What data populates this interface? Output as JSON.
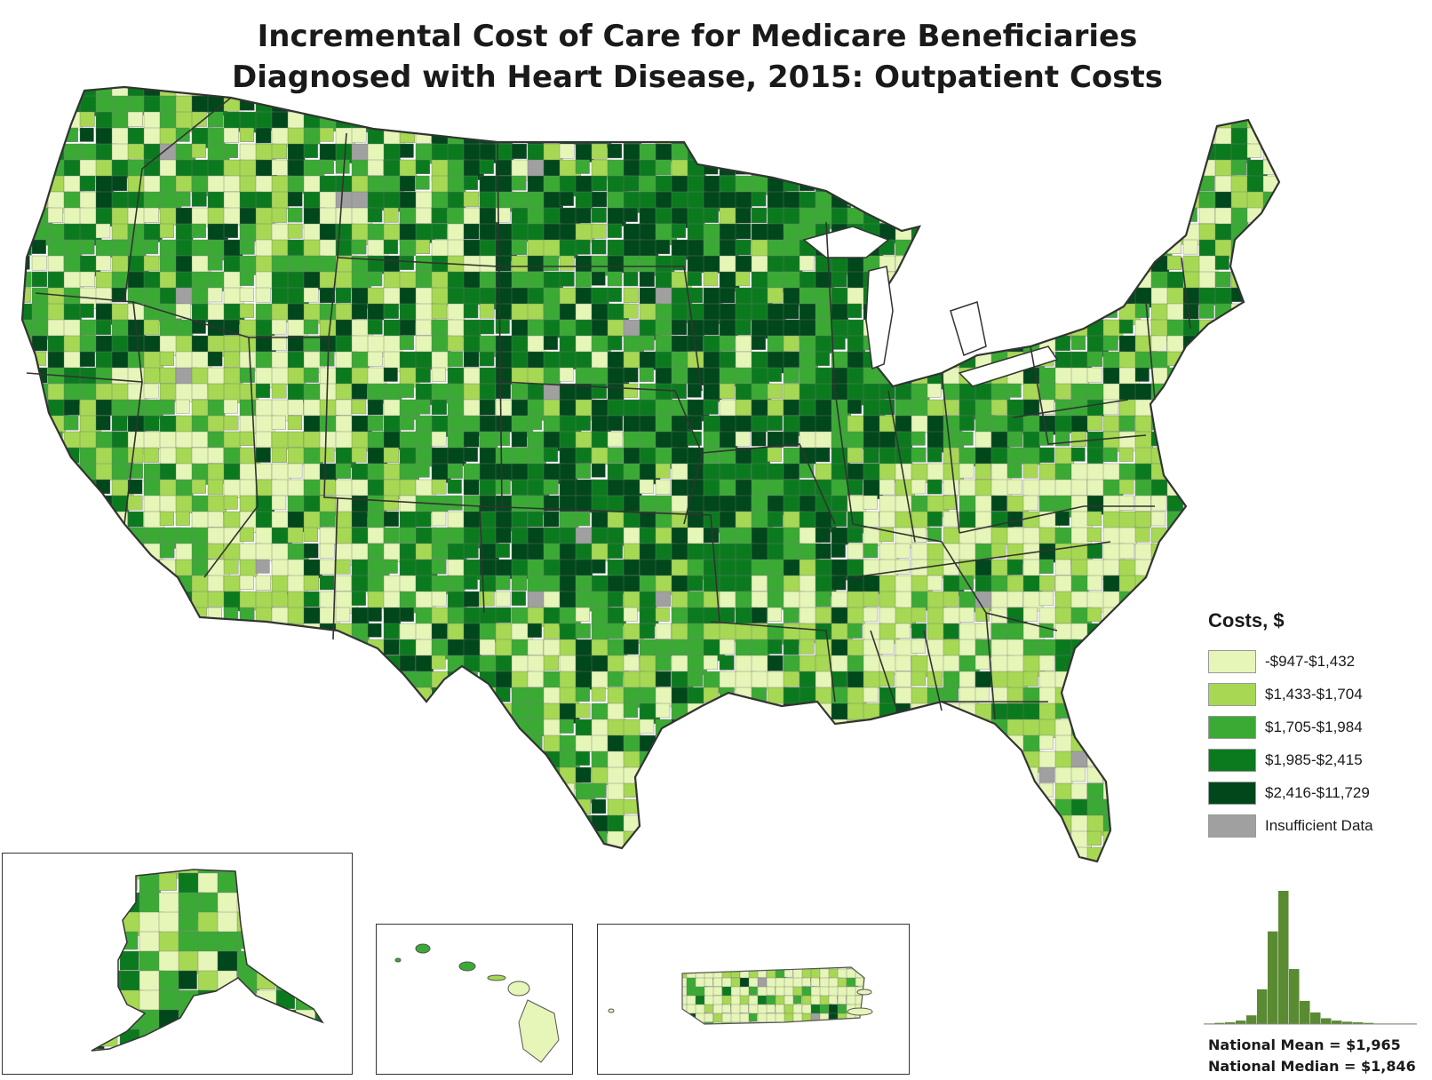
{
  "title": {
    "line1": "Incremental Cost of Care for Medicare Beneficiaries",
    "line2": "Diagnosed with Heart Disease, 2015: Outpatient Costs"
  },
  "legend": {
    "title": "Costs, $",
    "items": [
      {
        "label": "-$947-$1,432",
        "color": "#e6f5b8"
      },
      {
        "label": "$1,433-$1,704",
        "color": "#a6d854"
      },
      {
        "label": "$1,705-$1,984",
        "color": "#3aaa35"
      },
      {
        "label": "$1,985-$2,415",
        "color": "#0b7a1e"
      },
      {
        "label": "$2,416-$11,729",
        "color": "#00471b"
      },
      {
        "label": "Insufficient Data",
        "color": "#a0a0a0"
      }
    ]
  },
  "histogram": {
    "bars": [
      1,
      2,
      3,
      6,
      15,
      60,
      160,
      230,
      95,
      40,
      20,
      10,
      6,
      4,
      3,
      2,
      1,
      1,
      1,
      1
    ],
    "color": "#5a8a32"
  },
  "stats": {
    "mean": "National Mean = $1,965",
    "median": "National Median = $1,846"
  },
  "colors": {
    "state_border": "#333333",
    "county_border": "#777777"
  }
}
